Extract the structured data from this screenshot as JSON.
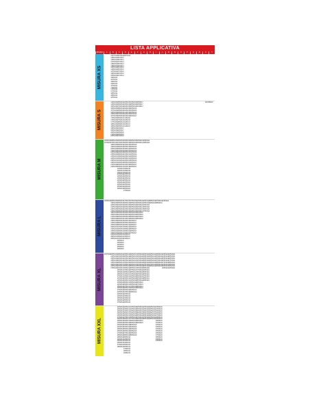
{
  "document": {
    "title": "LISTA APPLICATIVA",
    "header_cells": [
      "MISURA",
      "A",
      "B",
      "C",
      "D",
      "E",
      "F",
      "G",
      "H",
      "I",
      "L",
      "M",
      "N",
      "O",
      "P",
      "Q",
      "R",
      "S",
      "T"
    ],
    "colors": {
      "title_bar": "#d71920",
      "xs": "#38b6e0",
      "s": "#f58220",
      "m": "#3aaa35",
      "l": "#2e4a9e",
      "xl": "#7b4597",
      "xxl": "#e8e619"
    },
    "sections": [
      {
        "label": "MISURA XS",
        "columns": [
          [],
          [
            "1347/R13",
            "1355/R13",
            "1365/R13",
            "1375/R13",
            "1385/R13",
            "1395/R13",
            "1455/R13",
            "1465/R13",
            "1475/R13",
            "1485/R13",
            "1555/R13",
            "1565/R13",
            "1575/R13",
            "1655/R13",
            "1665/R13",
            "1675/R14",
            "1755/R14",
            "1765/R14",
            "1775/R14",
            "1855/R14",
            "1865/R14",
            "1875/R14",
            "1955/R14"
          ],
          [
            "1657/R14",
            "1657/R13",
            "1857/R14",
            "1757/R14",
            "1857/R13",
            "1957/R14",
            "2057/R14",
            "1957/R13",
            "1757/R13",
            "2057/R13",
            "2157/R14"
          ],
          [
            "2057/R15"
          ]
        ]
      },
      {
        "label": "MISURA S",
        "columns": [
          [],
          [
            "1445/R15",
            "1465/R15",
            "1555/R15",
            "1565/R15",
            "1575/R15",
            "1655/R15",
            "1665/R15",
            "1675/R15",
            "1755/R15",
            "1765/R15",
            "1775/R15",
            "1855/R15",
            "1865/R15",
            "1955/R15",
            "2055/R15",
            "2065/R15",
            "2155/R15",
            "2255/R15",
            "2355/R15"
          ],
          [
            "1555/R16",
            "1655/R16",
            "1755/R16",
            "1855/R16",
            "1955/R16",
            "2055/R16",
            "2155/R16",
            "2255/R16",
            "1655/R17",
            "1755/R17",
            "1855/R17",
            "1955/R17",
            "2055/R17",
            "2155/R17",
            "2255/R17",
            "1955/R18",
            "2055/R18",
            "2155/R18",
            "2255/R18",
            "2355/R18"
          ],
          [
            "2255/R15",
            "2355/R15",
            "1845/R15",
            "1945/R15",
            "2045/R15",
            "2145/R15",
            "1945/R16",
            "2045/R16",
            "2145/R16",
            "2245/R16",
            "1945/R17",
            "2045/R17",
            "2145/R17"
          ],
          [
            "1755/R16",
            "1855/R16",
            "1955/R16",
            "2055/R16",
            "2155/R16",
            "2255/R16",
            "2345/R16",
            "2045/R17"
          ],
          [
            "1955/R17",
            "2055/R17",
            "2155/R17"
          ]
        ],
        "extra": "225/35R20"
      },
      {
        "label": "MISURA M",
        "columns": [
          [
            "2055/R16",
            "2155/R16"
          ],
          [
            "1855/R15",
            "1755/R16",
            "1855/R16",
            "1955/R16",
            "2055/R16",
            "2155/R16",
            "2255/R16",
            "2355/R16",
            "2155/R17",
            "2255/R17",
            "2355/R17",
            "2455/R17",
            "2155/R18",
            "2255/R18"
          ],
          [
            "1656/R15",
            "1756/R15",
            "1856/R15",
            "1956/R15",
            "2056/R15",
            "2156/R15",
            "2256/R15",
            "1856/R16",
            "1956/R16",
            "2056/R16",
            "2156/R16",
            "2256/R16",
            "2356/R16",
            "2056/R17",
            "2156/R17",
            "2256/R17",
            "2356/R17",
            "2156/R18",
            "2256/R18",
            "2356/R18",
            "2456/R18",
            "2356/R19",
            "2456/R19",
            "2556/R19",
            "2656/R19"
          ],
          [
            "1955/R16",
            "2055/R16",
            "2155/R16",
            "2255/R16",
            "2355/R16",
            "2455/R16",
            "2055/R17",
            "2155/R17",
            "2255/R17",
            "2355/R17",
            "2455/R17",
            "2555/R17",
            "2155/R18",
            "2255/R18",
            "2355/R18",
            "2455/R18",
            "2555/R18",
            "2255/R19",
            "2355/R19",
            "2455/R19",
            "2555/R19",
            "2255/R20",
            "2355/R20",
            "2455/R20",
            "2555/R20",
            "2755/R20"
          ],
          [
            "1955/R15",
            "2055/R15",
            "2155/R15",
            "2255/R15",
            "2355/R15",
            "2455/R15",
            "2155/R16",
            "2255/R16",
            "2355/R16",
            "2455/R16",
            "2555/R16",
            "2255/R17",
            "2355/R17",
            "2455/R17"
          ],
          [
            "2255/R17",
            "2355/R17"
          ],
          [
            "2255/R18",
            "2355/R18"
          ]
        ]
      },
      {
        "label": "MISURA L",
        "columns": [
          [
            "1855/R15"
          ],
          [
            "1855/R15",
            "1955/R15",
            "2055/R15",
            "2155/R15",
            "2255/R15",
            "2355/R15",
            "1955/R16",
            "2055/R16",
            "2155/R16",
            "2255/R16",
            "2355/R16",
            "2455/R16",
            "2555/R16",
            "2055/R17",
            "2155/R17",
            "2255/R17",
            "2355/R17",
            "2455/R17",
            "2555/R17",
            "2655/R17"
          ],
          [
            "1955/R15",
            "2055/R15",
            "2155/R15",
            "2255/R15",
            "2355/R15",
            "1955/R16",
            "2055/R16",
            "2155/R16",
            "2255/R16",
            "2355/R16",
            "2455/R16",
            "2555/R16",
            "2655/R16",
            "2155/R17",
            "2255/R17",
            "2355/R17",
            "2455/R17",
            "2555/R17",
            "2655/R17",
            "2155/R18",
            "2255/R18",
            "2355/R18",
            "2455/R18",
            "2555/R18",
            "2655/R18",
            "2755/R18",
            "2155/R19",
            "2255/R19",
            "2355/R19",
            "2455/R19",
            "2555/R19"
          ],
          [
            "1755/R15",
            "1855/R15",
            "1955/R15",
            "2055/R15",
            "2155/R15",
            "2255/R15",
            "2355/R15",
            "2455/R15",
            "2555/R15",
            "2155/R16",
            "2255/R16",
            "2355/R16",
            "2455/R16",
            "2555/R16",
            "2655/R16",
            "2055/R17",
            "2155/R17",
            "2255/R17",
            "2355/R17",
            "2455/R17"
          ],
          [
            "1755/R16",
            "1855/R16",
            "1955/R16",
            "2055/R16",
            "2155/R16",
            "2255/R16",
            "2355/R16",
            "2455/R16",
            "2555/R16",
            "2655/R16",
            "2155/R17",
            "2255/R17",
            "2355/R17",
            "2455/R17",
            "2555/R17",
            "2655/R17",
            "2755/R17"
          ],
          [
            "2255/R16",
            "2355/R16",
            "2455/R16",
            "2255/R17",
            "2355/R17",
            "2455/R17",
            "2255/R18",
            "2355/R18",
            "2455/R18",
            "2555/R18"
          ],
          [
            "2255/R18",
            "2355/R18",
            "2455/R18",
            "2555/R18",
            "2655/R18",
            "2755/R18"
          ],
          [
            "2855/R18",
            "2255/R19"
          ],
          [
            "2755/R19",
            "2855/R19"
          ],
          [
            "1955/R20"
          ]
        ]
      },
      {
        "label": "MISURA XL",
        "columns": [
          [
            "2257/R16"
          ],
          [
            "2055/R16",
            "2155/R16",
            "2255/R16",
            "2355/R16",
            "2455/R16",
            "2555/R16",
            "2655/R16",
            "2755/R16"
          ],
          [
            "1955/R16",
            "2155/R16",
            "2255/R16",
            "2355/R16",
            "2055/R17",
            "2155/R17",
            "2255/R17",
            "2355/R17",
            "2455/R17",
            "2555/R17",
            "2655/R17",
            "2755/R17",
            "2155/R18",
            "2255/R18",
            "2355/R18",
            "2455/R18",
            "2555/R18",
            "2655/R18",
            "2755/R18",
            "2255/R19",
            "2355/R19",
            "2455/R19",
            "2555/R19",
            "2655/R19",
            "2755/R19",
            "2855/R19",
            "2955/R19",
            "3055/R19"
          ],
          [
            "1955/R16",
            "2055/R16",
            "2155/R16",
            "2255/R16",
            "2355/R16",
            "2455/R16",
            "2555/R16",
            "2655/R16",
            "2755/R16",
            "2055/R17",
            "2155/R17",
            "2255/R17",
            "2355/R17",
            "2455/R17",
            "2555/R17",
            "2655/R17",
            "2755/R17",
            "2855/R17",
            "2055/R18",
            "2155/R18",
            "2255/R18",
            "2355/R18",
            "2455/R18",
            "2555/R18",
            "2655/R18",
            "2755/R18",
            "2855/R18",
            "2955/R18",
            "2055/R19",
            "2155/R19",
            "2255/R19",
            "2355/R19",
            "2455/R19",
            "2555/R19",
            "2655/R19",
            "2755/R19",
            "2855/R19"
          ],
          [
            "1955/R17",
            "2055/R17",
            "2155/R17",
            "2255/R17",
            "2355/R17",
            "2455/R17",
            "2555/R17",
            "2655/R17",
            "2755/R17",
            "2855/R17",
            "2155/R18",
            "2255/R18",
            "2355/R18",
            "2455/R18",
            "2555/R18",
            "2655/R18",
            "2755/R18",
            "2855/R18",
            "2255/R19",
            "2355/R19"
          ],
          [
            "1955/R18",
            "2055/R18",
            "2155/R18",
            "2255/R18",
            "2355/R18",
            "2455/R18",
            "2555/R18",
            "2655/R18",
            "2755/R18",
            "2855/R18",
            "2255/R19",
            "2355/R19",
            "2455/R19",
            "2555/R19",
            "2655/R19",
            "2755/R19",
            "2855/R19",
            "2955/R19"
          ],
          [
            "2255/R20",
            "2355/R20",
            "2455/R20",
            "2555/R20",
            "2655/R20",
            "2755/R20",
            "2855/R20",
            "2955/R20",
            "2455/R21",
            "2555/R21",
            "2655/R21",
            "2755/R21",
            "2855/R21",
            "2955/R21"
          ],
          [
            "2255/R19",
            "2355/R19",
            "2455/R19",
            "2555/R19",
            "2655/R19",
            "2755/R19",
            "2855/R19"
          ],
          [
            "2955/R19",
            "2555/R20",
            "2655/R20",
            "2755/R20",
            "2855/R20",
            "2955/R20",
            "3055/R20"
          ],
          [
            "2355/R20",
            "2455/R20",
            "2555/R20",
            "2655/R20",
            "2755/R20",
            "2455/R21",
            "2555/R21",
            "2655/R21"
          ],
          [
            "2455/R21",
            "2555/R21",
            "2655/R21",
            "2755/R21",
            "2855/R21",
            "2955/R21",
            "3055/R21",
            "3155/R21"
          ]
        ]
      },
      {
        "label": "MISURA XXL",
        "columns": [
          [],
          [],
          [
            "2255/R19",
            "2355/R19",
            "2455/R19",
            "2555/R19",
            "2655/R19",
            "2755/R19",
            "2855/R19",
            "2955/R19",
            "2255/R20",
            "2355/R20",
            "2455/R20",
            "2555/R20",
            "2655/R20",
            "2755/R20",
            "2855/R20",
            "2955/R20",
            "2455/R21",
            "2555/R21",
            "2655/R21",
            "2755/R21",
            "2855/R21"
          ],
          [
            "2255/R17",
            "2355/R17",
            "2455/R17",
            "2555/R17",
            "2655/R17",
            "2755/R17",
            "2855/R17",
            "2955/R17",
            "2255/R18",
            "2355/R18",
            "2455/R18",
            "2555/R18",
            "2655/R18",
            "2755/R18",
            "2855/R18",
            "2955/R18",
            "2255/R19",
            "2355/R19",
            "2455/R19",
            "2555/R19",
            "2655/R19",
            "2755/R19",
            "2855/R19",
            "2955/R19",
            "3055/R19",
            "3155/R19",
            "3255/R19",
            "3355/R19",
            "3455/R19"
          ],
          [
            "2155/R18",
            "2255/R18",
            "2355/R18",
            "2455/R18",
            "2555/R18",
            "2655/R18",
            "2755/R18",
            "2855/R18",
            "2955/R18",
            "3055/R18",
            "3155/R18",
            "3255/R18",
            "3355/R18",
            "3455/R18",
            "3555/R18"
          ],
          [
            "2255/R19",
            "2355/R19",
            "2455/R19",
            "2555/R19",
            "2655/R19",
            "2755/R19",
            "2855/R19",
            "2955/R19",
            "3055/R19"
          ],
          [
            "2255/R20",
            "2355/R20",
            "2455/R20",
            "2555/R20",
            "2655/R20",
            "2755/R20",
            "2855/R20"
          ],
          [
            "2255/R21",
            "2355/R21",
            "2455/R21",
            "2555/R21",
            "2655/R21",
            "2755/R21",
            "2855/R21"
          ],
          [
            "2355/R20",
            "2455/R20",
            "2555/R20",
            "2655/R20",
            "2755/R20",
            "2855/R20",
            "2955/R20",
            "3055/R20",
            "3155/R20",
            "3255/R20",
            "3355/R20",
            "3455/R20",
            "3555/R20",
            "3655/R20",
            "3755/R20",
            "3855/R20",
            "3955/R20",
            "4055/R20"
          ]
        ]
      }
    ]
  }
}
